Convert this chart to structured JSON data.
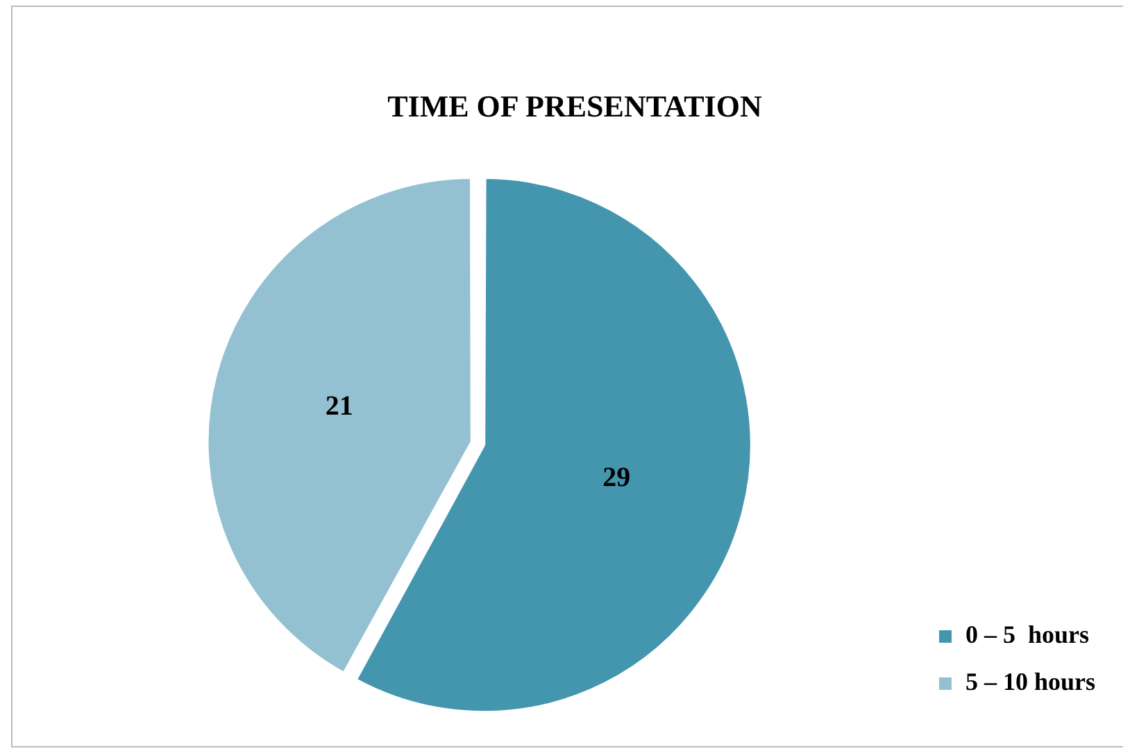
{
  "chart_data": {
    "type": "pie",
    "title": "TIME OF PRESENTATION",
    "categories": [
      "0 – 5  hours",
      "5 – 10 hours"
    ],
    "values": [
      29,
      21
    ],
    "colors": [
      "#4396ae",
      "#93c1d2"
    ],
    "data_labels": true,
    "legend": "bottom right"
  }
}
